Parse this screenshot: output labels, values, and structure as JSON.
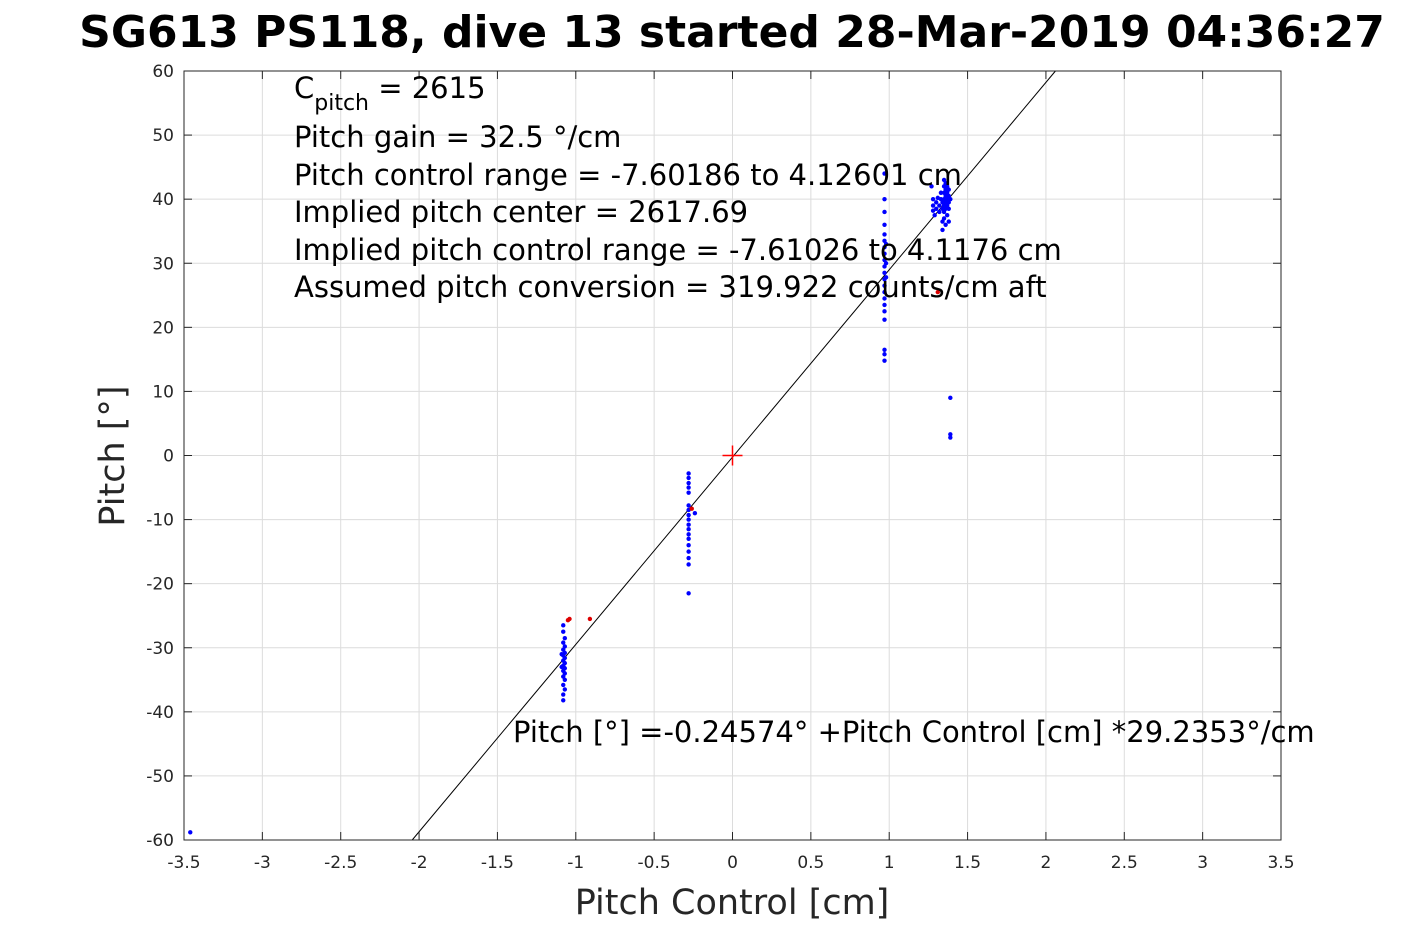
{
  "chart_data": {
    "type": "scatter",
    "title": "SG613 PS118, dive 13 started 28-Mar-2019 04:36:27",
    "xlabel": "Pitch Control [cm]",
    "ylabel": "Pitch [°]",
    "xlim": [
      -3.5,
      3.5
    ],
    "ylim": [
      -60,
      60
    ],
    "xticks": [
      -3.5,
      -3,
      -2.5,
      -2,
      -1.5,
      -1,
      -0.5,
      0,
      0.5,
      1,
      1.5,
      2,
      2.5,
      3,
      3.5
    ],
    "xtick_labels": [
      "-3.5",
      "-3",
      "-2.5",
      "-2",
      "-1.5",
      "-1",
      "-0.5",
      "0",
      "0.5",
      "1",
      "1.5",
      "2",
      "2.5",
      "3",
      "3.5"
    ],
    "yticks": [
      -60,
      -50,
      -40,
      -30,
      -20,
      -10,
      0,
      10,
      20,
      30,
      40,
      50,
      60
    ],
    "ytick_labels": [
      "-60",
      "-50",
      "-40",
      "-30",
      "-20",
      "-10",
      "0",
      "10",
      "20",
      "30",
      "40",
      "50",
      "60"
    ],
    "grid": true,
    "annotations": {
      "cpitch_main": "C",
      "cpitch_sub": "pitch",
      "cpitch_value": " = 2615",
      "lines": [
        "Pitch gain = 32.5 °/cm",
        "Pitch control range = -7.60186 to 4.12601 cm",
        "Implied pitch center = 2617.69",
        "Implied pitch control range = -7.61026 to 4.1176 cm",
        "Assumed pitch conversion = 319.922 counts/cm aft"
      ],
      "fit_equation": "Pitch [°] =-0.24574° +Pitch Control [cm] *29.2353°/cm"
    },
    "fit_line": {
      "intercept": -0.24574,
      "slope": 29.2353,
      "color": "#000000"
    },
    "center_marker": {
      "x": 0,
      "y": 0,
      "color": "#ff0000"
    },
    "series": [
      {
        "color": "#0000ff",
        "points": [
          [
            -3.46,
            -58.8
          ],
          [
            -1.08,
            -26.5
          ],
          [
            -1.08,
            -27.5
          ],
          [
            -1.07,
            -28.5
          ],
          [
            -1.08,
            -29.2
          ],
          [
            -1.07,
            -29.8
          ],
          [
            -1.08,
            -30.3
          ],
          [
            -1.07,
            -30.8
          ],
          [
            -1.08,
            -31.2
          ],
          [
            -1.07,
            -31.6
          ],
          [
            -1.08,
            -32.0
          ],
          [
            -1.07,
            -32.4
          ],
          [
            -1.08,
            -32.8
          ],
          [
            -1.07,
            -33.2
          ],
          [
            -1.08,
            -33.6
          ],
          [
            -1.07,
            -34.0
          ],
          [
            -1.08,
            -34.5
          ],
          [
            -1.07,
            -35.0
          ],
          [
            -1.08,
            -35.8
          ],
          [
            -1.07,
            -36.5
          ],
          [
            -1.08,
            -37.3
          ],
          [
            -1.08,
            -38.2
          ],
          [
            -1.09,
            -31.0
          ],
          [
            -1.09,
            -33.0
          ],
          [
            -0.28,
            -2.8
          ],
          [
            -0.28,
            -3.5
          ],
          [
            -0.28,
            -4.3
          ],
          [
            -0.28,
            -5.0
          ],
          [
            -0.28,
            -5.8
          ],
          [
            -0.28,
            -7.8
          ],
          [
            -0.28,
            -8.5
          ],
          [
            -0.28,
            -9.3
          ],
          [
            -0.28,
            -10.0
          ],
          [
            -0.28,
            -10.8
          ],
          [
            -0.28,
            -11.5
          ],
          [
            -0.28,
            -12.3
          ],
          [
            -0.28,
            -13.0
          ],
          [
            -0.28,
            -14.0
          ],
          [
            -0.28,
            -15.0
          ],
          [
            -0.28,
            -16.0
          ],
          [
            -0.28,
            -17.0
          ],
          [
            -0.28,
            -21.5
          ],
          [
            -0.24,
            -9.0
          ],
          [
            0.97,
            44.0
          ],
          [
            0.97,
            40.0
          ],
          [
            0.97,
            38.0
          ],
          [
            0.97,
            36.0
          ],
          [
            0.97,
            34.5
          ],
          [
            0.97,
            33.5
          ],
          [
            0.97,
            32.5
          ],
          [
            0.97,
            31.5
          ],
          [
            0.97,
            30.5
          ],
          [
            0.97,
            29.5
          ],
          [
            0.97,
            28.5
          ],
          [
            0.97,
            27.5
          ],
          [
            0.97,
            26.5
          ],
          [
            0.97,
            25.5
          ],
          [
            0.97,
            24.5
          ],
          [
            0.97,
            23.5
          ],
          [
            0.97,
            22.5
          ],
          [
            0.97,
            21.2
          ],
          [
            0.97,
            16.5
          ],
          [
            0.97,
            15.8
          ],
          [
            0.97,
            14.8
          ],
          [
            0.98,
            33.0
          ],
          [
            0.98,
            30.0
          ],
          [
            0.98,
            27.8
          ],
          [
            1.27,
            42.0
          ],
          [
            1.28,
            40.0
          ],
          [
            1.28,
            39.0
          ],
          [
            1.28,
            38.2
          ],
          [
            1.29,
            37.5
          ],
          [
            1.3,
            39.5
          ],
          [
            1.3,
            38.5
          ],
          [
            1.31,
            40.2
          ],
          [
            1.32,
            39.0
          ],
          [
            1.32,
            38.0
          ],
          [
            1.33,
            41.0
          ],
          [
            1.33,
            40.0
          ],
          [
            1.34,
            39.5
          ],
          [
            1.34,
            38.5
          ],
          [
            1.34,
            36.5
          ],
          [
            1.34,
            35.2
          ],
          [
            1.35,
            43.0
          ],
          [
            1.35,
            42.0
          ],
          [
            1.35,
            41.0
          ],
          [
            1.35,
            40.0
          ],
          [
            1.35,
            39.0
          ],
          [
            1.35,
            38.0
          ],
          [
            1.35,
            37.0
          ],
          [
            1.36,
            42.5
          ],
          [
            1.36,
            41.5
          ],
          [
            1.36,
            40.5
          ],
          [
            1.36,
            39.5
          ],
          [
            1.36,
            38.5
          ],
          [
            1.36,
            36.0
          ],
          [
            1.37,
            42.0
          ],
          [
            1.37,
            41.0
          ],
          [
            1.37,
            40.0
          ],
          [
            1.37,
            39.0
          ],
          [
            1.37,
            37.5
          ],
          [
            1.38,
            41.5
          ],
          [
            1.38,
            40.5
          ],
          [
            1.38,
            39.5
          ],
          [
            1.38,
            38.5
          ],
          [
            1.38,
            36.5
          ],
          [
            1.39,
            40.0
          ],
          [
            1.39,
            9.0
          ],
          [
            1.39,
            3.3
          ],
          [
            1.39,
            2.8
          ]
        ]
      },
      {
        "color": "#dd0000",
        "points": [
          [
            -1.04,
            -25.5
          ],
          [
            -1.05,
            -25.7
          ],
          [
            -0.91,
            -25.5
          ],
          [
            -0.26,
            -8.3
          ],
          [
            1.31,
            25.5
          ]
        ]
      }
    ]
  }
}
